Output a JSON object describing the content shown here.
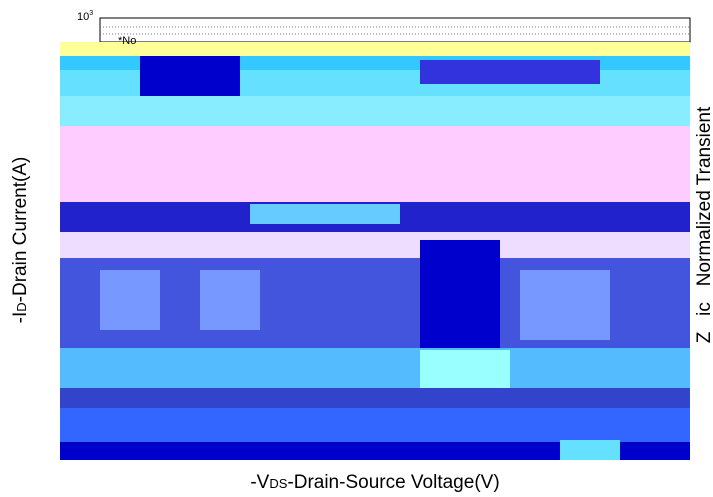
{
  "y_axis": {
    "title_parts": [
      "-I",
      "D",
      "-Drain Current(A)"
    ],
    "top_tick": {
      "base": "10",
      "exponent": "3"
    }
  },
  "x_axis": {
    "title_parts": [
      "-V",
      "DS",
      "-Drain-Source Voltage(V)"
    ]
  },
  "right_axis": {
    "title": "Z   ic   Normalized Transient"
  },
  "note": "*No"
}
